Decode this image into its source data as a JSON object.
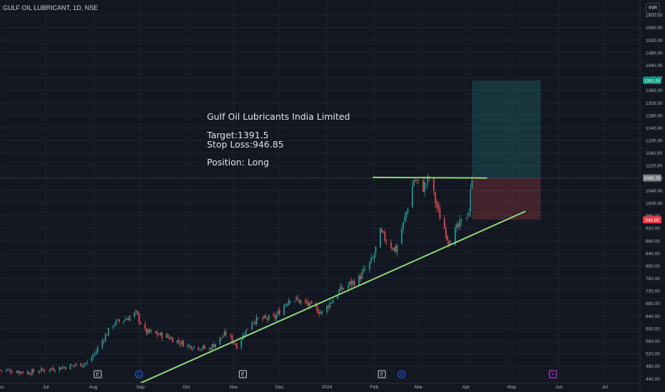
{
  "header": {
    "symbol_title": "GULF OIL LUBRICANT, 1D, NSE",
    "currency": "INR"
  },
  "annotation": {
    "company": "Gulf Oil Lubricants India Limited",
    "target": "Target:1391.5",
    "stop_loss": "Stop Loss:946.85",
    "position": "Position: Long"
  },
  "price_labels": {
    "target": "1391.50",
    "current": "1080.25",
    "stop": "946.85"
  },
  "colors": {
    "background": "#131722",
    "up": "#26a69a",
    "down": "#ef5350",
    "trendline": "#8fd679",
    "target_zone": "rgba(38,166,154,0.22)",
    "stop_zone": "rgba(239,83,80,0.22)",
    "grid": "#1e222d"
  },
  "events": [
    {
      "label": "E",
      "date": "2023-08-04",
      "color": "#d1d4dc"
    },
    {
      "label": "D",
      "date": "2023-08-31",
      "color": "#2962ff"
    },
    {
      "label": "E",
      "date": "2023-11-07",
      "color": "#d1d4dc"
    },
    {
      "label": "E",
      "date": "2024-02-06",
      "color": "#d1d4dc"
    },
    {
      "label": "D",
      "date": "2024-02-19",
      "color": "#2962ff"
    },
    {
      "label": "×",
      "date": "2024-05-28",
      "color": "#e040fb"
    }
  ],
  "chart_data": {
    "type": "candlestick",
    "title": "GULF OIL LUBRICANT, 1D, NSE",
    "x_ticks": [
      "Jun",
      "Jul",
      "Aug",
      "Sep",
      "Oct",
      "Nov",
      "Dec",
      "2024",
      "Feb",
      "Mar",
      "Apr",
      "May",
      "Jun",
      "Jul"
    ],
    "y_ticks": [
      440,
      480,
      520,
      560,
      600,
      640,
      680,
      720,
      760,
      800,
      840,
      880,
      920,
      960,
      1000,
      1040,
      1080,
      1120,
      1160,
      1200,
      1240,
      1280,
      1320,
      1360,
      1400,
      1440,
      1480,
      1520,
      1560,
      1600
    ],
    "ylim": [
      427,
      1648
    ],
    "xlim": [
      "2023-06-01",
      "2024-07-24"
    ],
    "series": [
      {
        "name": "",
        "close_points": [
          [
            "2023-06-01",
            468
          ],
          [
            "2023-06-20",
            460
          ],
          [
            "2023-07-10",
            475
          ],
          [
            "2023-07-28",
            490
          ],
          [
            "2023-08-02",
            520
          ],
          [
            "2023-08-08",
            570
          ],
          [
            "2023-08-14",
            615
          ],
          [
            "2023-08-22",
            630
          ],
          [
            "2023-08-29",
            648
          ],
          [
            "2023-09-04",
            590
          ],
          [
            "2023-09-18",
            575
          ],
          [
            "2023-10-02",
            545
          ],
          [
            "2023-10-16",
            535
          ],
          [
            "2023-10-27",
            585
          ],
          [
            "2023-11-03",
            545
          ],
          [
            "2023-11-13",
            625
          ],
          [
            "2023-11-28",
            635
          ],
          [
            "2023-12-08",
            700
          ],
          [
            "2023-12-20",
            675
          ],
          [
            "2023-12-29",
            650
          ],
          [
            "2024-01-09",
            720
          ],
          [
            "2024-01-22",
            760
          ],
          [
            "2024-01-31",
            820
          ],
          [
            "2024-02-05",
            905
          ],
          [
            "2024-02-09",
            880
          ],
          [
            "2024-02-15",
            850
          ],
          [
            "2024-02-21",
            950
          ],
          [
            "2024-02-27",
            1075
          ],
          [
            "2024-03-04",
            1050
          ],
          [
            "2024-03-08",
            1080
          ],
          [
            "2024-03-14",
            970
          ],
          [
            "2024-03-21",
            880
          ],
          [
            "2024-03-28",
            930
          ],
          [
            "2024-04-03",
            975
          ],
          [
            "2024-04-05",
            1090
          ]
        ]
      }
    ],
    "lines": [
      {
        "type": "trendline",
        "from": [
          "2023-09-01",
          426
        ],
        "to": [
          "2024-05-10",
          974
        ]
      },
      {
        "type": "resistance",
        "from": [
          "2024-01-31",
          1082
        ],
        "to": [
          "2024-04-15",
          1080
        ]
      }
    ],
    "position": {
      "side": "long",
      "entry": 1080.25,
      "target": 1391.5,
      "stop_loss": 946.85,
      "start": "2024-04-05",
      "end": "2024-05-20"
    },
    "grid": true
  }
}
